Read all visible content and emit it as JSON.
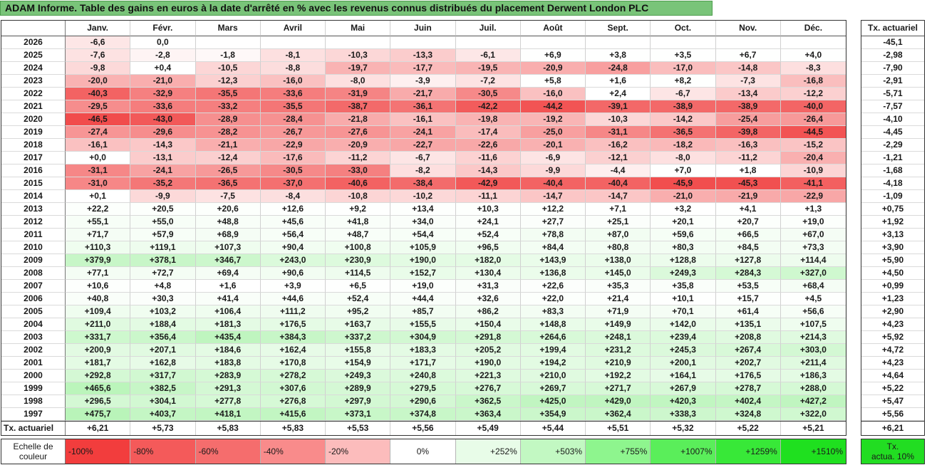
{
  "theme": {
    "title_bar": "#79c479"
  },
  "chart_data": {
    "type": "heatmap",
    "title": "ADAM Informe. Table des gains en euros à la date d'arrêté en % avec les revenus connus distribués du placement Derwent London PLC",
    "columns": [
      "Janv.",
      "Févr.",
      "Mars",
      "Avril",
      "Mai",
      "Juin",
      "Juil.",
      "Août",
      "Sept.",
      "Oct.",
      "Nov.",
      "Déc."
    ],
    "rate_column_label": "Tx. actuariel",
    "color_scale": {
      "negative": "#f03e3e",
      "zero": "#ffffff",
      "positive": "#22dd22"
    },
    "rows": [
      {
        "year": "2026",
        "values": [
          "-6,6",
          "0,0",
          "",
          "",
          "",
          "",
          "",
          "",
          "",
          "",
          "",
          ""
        ],
        "rate": "-45,1"
      },
      {
        "year": "2025",
        "values": [
          "-7,6",
          "-2,8",
          "-1,8",
          "-8,1",
          "-10,3",
          "-13,3",
          "-6,1",
          "+6,9",
          "+3,8",
          "+3,5",
          "+6,7",
          "+4,0"
        ],
        "rate": "-2,98"
      },
      {
        "year": "2024",
        "values": [
          "-9,8",
          "+0,4",
          "-10,5",
          "-8,8",
          "-19,7",
          "-17,7",
          "-19,5",
          "-20,9",
          "-24,8",
          "-17,0",
          "-14,8",
          "-8,3"
        ],
        "rate": "-7,90"
      },
      {
        "year": "2023",
        "values": [
          "-20,0",
          "-21,0",
          "-12,3",
          "-16,0",
          "-8,0",
          "-3,9",
          "-7,2",
          "+5,8",
          "+1,6",
          "+8,2",
          "-7,3",
          "-16,8"
        ],
        "rate": "-2,91"
      },
      {
        "year": "2022",
        "values": [
          "-40,3",
          "-32,9",
          "-35,5",
          "-33,6",
          "-31,9",
          "-21,7",
          "-30,5",
          "-16,0",
          "+2,4",
          "-6,7",
          "-13,4",
          "-12,2"
        ],
        "rate": "-5,71"
      },
      {
        "year": "2021",
        "values": [
          "-29,5",
          "-33,6",
          "-33,2",
          "-35,5",
          "-38,7",
          "-36,1",
          "-42,2",
          "-44,2",
          "-39,1",
          "-38,9",
          "-38,9",
          "-40,0"
        ],
        "rate": "-7,57"
      },
      {
        "year": "2020",
        "values": [
          "-46,5",
          "-43,0",
          "-28,9",
          "-28,4",
          "-21,8",
          "-16,1",
          "-19,8",
          "-19,2",
          "-10,3",
          "-14,2",
          "-25,4",
          "-26,4"
        ],
        "rate": "-4,10"
      },
      {
        "year": "2019",
        "values": [
          "-27,4",
          "-29,6",
          "-28,2",
          "-26,7",
          "-27,6",
          "-24,1",
          "-17,4",
          "-25,0",
          "-31,1",
          "-36,5",
          "-39,8",
          "-44,5"
        ],
        "rate": "-4,45"
      },
      {
        "year": "2018",
        "values": [
          "-16,1",
          "-14,3",
          "-21,1",
          "-22,9",
          "-20,9",
          "-22,7",
          "-22,6",
          "-20,1",
          "-16,2",
          "-18,2",
          "-16,3",
          "-15,2"
        ],
        "rate": "-2,29"
      },
      {
        "year": "2017",
        "values": [
          "+0,0",
          "-13,1",
          "-12,4",
          "-17,6",
          "-11,2",
          "-6,7",
          "-11,6",
          "-6,9",
          "-12,1",
          "-8,0",
          "-11,2",
          "-20,4"
        ],
        "rate": "-1,21"
      },
      {
        "year": "2016",
        "values": [
          "-31,1",
          "-24,1",
          "-26,5",
          "-30,5",
          "-33,0",
          "-8,2",
          "-14,3",
          "-9,9",
          "-4,4",
          "+7,0",
          "+1,8",
          "-10,9"
        ],
        "rate": "-1,68"
      },
      {
        "year": "2015",
        "values": [
          "-31,0",
          "-35,2",
          "-36,5",
          "-37,0",
          "-40,6",
          "-38,4",
          "-42,9",
          "-40,4",
          "-40,4",
          "-45,9",
          "-45,3",
          "-41,1"
        ],
        "rate": "-4,18"
      },
      {
        "year": "2014",
        "values": [
          "+0,1",
          "-9,9",
          "-7,5",
          "-8,4",
          "-10,8",
          "-10,2",
          "-11,1",
          "-14,7",
          "-14,7",
          "-21,0",
          "-21,9",
          "-22,9"
        ],
        "rate": "-1,09"
      },
      {
        "year": "2013",
        "values": [
          "+22,2",
          "+20,5",
          "+20,6",
          "+12,6",
          "+9,2",
          "+13,4",
          "+10,3",
          "+12,2",
          "+7,1",
          "+3,2",
          "+4,1",
          "+1,3"
        ],
        "rate": "+0,75"
      },
      {
        "year": "2012",
        "values": [
          "+55,1",
          "+55,0",
          "+48,8",
          "+45,6",
          "+41,8",
          "+34,0",
          "+24,1",
          "+27,7",
          "+25,1",
          "+20,1",
          "+20,7",
          "+19,0"
        ],
        "rate": "+1,92"
      },
      {
        "year": "2011",
        "values": [
          "+71,7",
          "+57,9",
          "+68,9",
          "+56,4",
          "+48,7",
          "+54,4",
          "+52,4",
          "+78,8",
          "+87,0",
          "+59,6",
          "+66,5",
          "+67,0"
        ],
        "rate": "+3,13"
      },
      {
        "year": "2010",
        "values": [
          "+110,3",
          "+119,1",
          "+107,3",
          "+90,4",
          "+100,8",
          "+105,9",
          "+96,5",
          "+84,4",
          "+80,8",
          "+80,3",
          "+84,5",
          "+73,3"
        ],
        "rate": "+3,90"
      },
      {
        "year": "2009",
        "values": [
          "+379,9",
          "+378,1",
          "+346,7",
          "+243,0",
          "+230,9",
          "+190,0",
          "+182,0",
          "+143,9",
          "+138,0",
          "+128,8",
          "+127,8",
          "+114,4"
        ],
        "rate": "+5,90"
      },
      {
        "year": "2008",
        "values": [
          "+77,1",
          "+72,7",
          "+69,4",
          "+90,6",
          "+114,5",
          "+152,7",
          "+130,4",
          "+136,8",
          "+145,0",
          "+249,3",
          "+284,3",
          "+327,0"
        ],
        "rate": "+4,50"
      },
      {
        "year": "2007",
        "values": [
          "+10,6",
          "+4,8",
          "+1,6",
          "+3,9",
          "+6,5",
          "+19,0",
          "+31,3",
          "+22,6",
          "+35,3",
          "+35,8",
          "+53,5",
          "+68,4"
        ],
        "rate": "+0,99"
      },
      {
        "year": "2006",
        "values": [
          "+40,8",
          "+30,3",
          "+41,4",
          "+44,6",
          "+52,4",
          "+44,4",
          "+32,6",
          "+22,0",
          "+21,4",
          "+10,1",
          "+15,7",
          "+4,5"
        ],
        "rate": "+1,23"
      },
      {
        "year": "2005",
        "values": [
          "+109,4",
          "+103,2",
          "+106,4",
          "+111,2",
          "+95,2",
          "+85,7",
          "+86,2",
          "+83,3",
          "+71,9",
          "+70,1",
          "+61,4",
          "+56,6"
        ],
        "rate": "+2,90"
      },
      {
        "year": "2004",
        "values": [
          "+211,0",
          "+188,4",
          "+181,3",
          "+176,5",
          "+163,7",
          "+155,5",
          "+150,4",
          "+148,8",
          "+149,9",
          "+142,0",
          "+135,1",
          "+107,5"
        ],
        "rate": "+4,23"
      },
      {
        "year": "2003",
        "values": [
          "+331,7",
          "+356,4",
          "+435,4",
          "+384,3",
          "+337,2",
          "+304,9",
          "+291,8",
          "+264,6",
          "+248,1",
          "+239,4",
          "+208,8",
          "+214,3"
        ],
        "rate": "+5,92"
      },
      {
        "year": "2002",
        "values": [
          "+200,9",
          "+207,1",
          "+184,6",
          "+162,4",
          "+155,8",
          "+183,3",
          "+205,2",
          "+199,4",
          "+231,2",
          "+245,3",
          "+267,4",
          "+303,0"
        ],
        "rate": "+4,72"
      },
      {
        "year": "2001",
        "values": [
          "+181,7",
          "+162,8",
          "+183,8",
          "+170,8",
          "+154,9",
          "+171,7",
          "+190,0",
          "+194,2",
          "+210,9",
          "+200,1",
          "+202,7",
          "+211,4"
        ],
        "rate": "+4,23"
      },
      {
        "year": "2000",
        "values": [
          "+292,8",
          "+317,7",
          "+283,9",
          "+278,2",
          "+249,3",
          "+240,8",
          "+221,3",
          "+210,0",
          "+192,2",
          "+164,1",
          "+176,5",
          "+186,3"
        ],
        "rate": "+4,64"
      },
      {
        "year": "1999",
        "values": [
          "+465,6",
          "+382,5",
          "+291,3",
          "+307,6",
          "+289,9",
          "+279,5",
          "+276,7",
          "+269,7",
          "+271,7",
          "+267,9",
          "+278,7",
          "+288,0"
        ],
        "rate": "+5,22"
      },
      {
        "year": "1998",
        "values": [
          "+296,5",
          "+304,1",
          "+277,8",
          "+276,8",
          "+297,9",
          "+290,6",
          "+362,5",
          "+425,0",
          "+429,0",
          "+420,3",
          "+402,4",
          "+427,2"
        ],
        "rate": "+5,47"
      },
      {
        "year": "1997",
        "values": [
          "+475,7",
          "+403,7",
          "+418,1",
          "+415,6",
          "+373,1",
          "+374,8",
          "+363,4",
          "+354,9",
          "+362,4",
          "+338,3",
          "+324,8",
          "+322,0"
        ],
        "rate": "+5,56"
      }
    ],
    "summary_row": {
      "label": "Tx. actuariel",
      "values": [
        "+6,21",
        "+5,73",
        "+5,83",
        "+5,83",
        "+5,53",
        "+5,56",
        "+5,49",
        "+5,44",
        "+5,51",
        "+5,32",
        "+5,22",
        "+5,21"
      ],
      "rate": "+6,21"
    },
    "legend": {
      "label_lines": [
        "Echelle de",
        "couleur"
      ],
      "steps": [
        {
          "label": "-100%",
          "color": "#f23d3d"
        },
        {
          "label": "-80%",
          "color": "#f45a5a"
        },
        {
          "label": "-60%",
          "color": "#f56d6d"
        },
        {
          "label": "-40%",
          "color": "#f98b8b"
        },
        {
          "label": "-20%",
          "color": "#fcbcbc"
        },
        {
          "label": "0%",
          "color": "#ffffff"
        },
        {
          "label": "+252%",
          "color": "#e8fce8"
        },
        {
          "label": "+503%",
          "color": "#c2f8c2"
        },
        {
          "label": "+755%",
          "color": "#8ef58e"
        },
        {
          "label": "+1007%",
          "color": "#5aee5a"
        },
        {
          "label": "+1259%",
          "color": "#38e838"
        },
        {
          "label": "+1510%",
          "color": "#1fe01f"
        }
      ],
      "rate_label_lines": [
        "Tx.",
        "actua. 10%"
      ],
      "rate_color": "#22dd22"
    }
  }
}
